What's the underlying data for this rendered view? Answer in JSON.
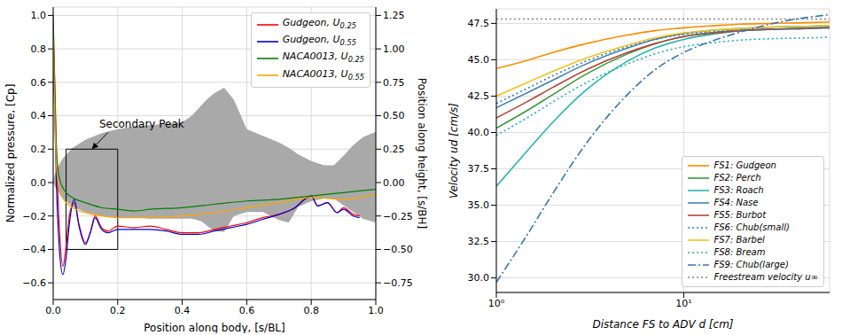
{
  "chart_data": [
    {
      "type": "line",
      "x_label": "Position along body, [s/BL]",
      "y_label": "Normalized pressure, [Cp]",
      "y2_label": "Position along height, [s/BH]",
      "xlim": [
        0,
        1
      ],
      "xticks": [
        {
          "value": 0,
          "label": "0.0"
        },
        0.2,
        0.4,
        0.6,
        0.8,
        {
          "value": 1,
          "label": "1.0"
        }
      ],
      "ylim": [
        -0.7,
        1.05
      ],
      "yticks": [
        {
          "value": -0.6,
          "label": "−0.6"
        },
        {
          "value": -0.4,
          "label": "−0.4"
        },
        {
          "value": -0.2,
          "label": "−0.2"
        },
        {
          "value": 0,
          "label": "0.0"
        },
        0.2,
        0.4,
        0.6,
        0.8,
        {
          "value": 1,
          "label": "1.0"
        }
      ],
      "y2lim": [
        -0.875,
        1.3125
      ],
      "y2ticks": [
        {
          "value": -0.75,
          "label": "−0.75"
        },
        {
          "value": -0.5,
          "label": "−0.50"
        },
        {
          "value": -0.25,
          "label": "−0.25"
        },
        {
          "value": 0,
          "label": "0.00"
        },
        0.25,
        {
          "value": 0.5,
          "label": "0.50"
        },
        0.75,
        {
          "value": 1,
          "label": "1.00"
        },
        1.25
      ],
      "grid": true,
      "legend": "upper right",
      "series": [
        {
          "name": "Gudgeon, U0.25",
          "color": "#ff0000",
          "x": [
            0,
            0.005,
            0.01,
            0.02,
            0.03,
            0.04,
            0.05,
            0.065,
            0.08,
            0.1,
            0.115,
            0.13,
            0.15,
            0.17,
            0.2,
            0.25,
            0.3,
            0.35,
            0.4,
            0.45,
            0.5,
            0.55,
            0.6,
            0.65,
            0.7,
            0.75,
            0.78,
            0.8,
            0.82,
            0.85,
            0.88,
            0.9,
            0.93,
            0.95
          ],
          "values": [
            0.95,
            0.6,
            0.2,
            -0.3,
            -0.5,
            -0.38,
            -0.2,
            -0.12,
            -0.25,
            -0.36,
            -0.3,
            -0.2,
            -0.27,
            -0.29,
            -0.26,
            -0.27,
            -0.26,
            -0.28,
            -0.3,
            -0.3,
            -0.28,
            -0.26,
            -0.24,
            -0.21,
            -0.19,
            -0.15,
            -0.1,
            -0.08,
            -0.14,
            -0.12,
            -0.18,
            -0.15,
            -0.19,
            -0.2
          ]
        },
        {
          "name": "Gudgeon, U0.55",
          "color": "#0000cc",
          "x": [
            0,
            0.005,
            0.01,
            0.02,
            0.03,
            0.04,
            0.05,
            0.065,
            0.08,
            0.1,
            0.115,
            0.13,
            0.15,
            0.17,
            0.2,
            0.25,
            0.3,
            0.35,
            0.4,
            0.45,
            0.5,
            0.55,
            0.6,
            0.65,
            0.7,
            0.75,
            0.78,
            0.8,
            0.82,
            0.85,
            0.88,
            0.9,
            0.93,
            0.95
          ],
          "values": [
            0.7,
            0.4,
            0,
            -0.42,
            -0.55,
            -0.45,
            -0.25,
            -0.1,
            -0.26,
            -0.37,
            -0.3,
            -0.21,
            -0.28,
            -0.3,
            -0.28,
            -0.28,
            -0.28,
            -0.29,
            -0.31,
            -0.31,
            -0.29,
            -0.27,
            -0.25,
            -0.22,
            -0.19,
            -0.15,
            -0.1,
            -0.08,
            -0.14,
            -0.12,
            -0.18,
            -0.16,
            -0.2,
            -0.21
          ]
        },
        {
          "name": "NACA0013, U0.25",
          "color": "#008000",
          "x": [
            0,
            0.005,
            0.01,
            0.02,
            0.04,
            0.07,
            0.1,
            0.15,
            0.2,
            0.25,
            0.3,
            0.4,
            0.5,
            0.6,
            0.7,
            0.8,
            0.9,
            1
          ],
          "values": [
            1,
            0.55,
            0.2,
            0.02,
            -0.06,
            -0.1,
            -0.12,
            -0.15,
            -0.16,
            -0.17,
            -0.16,
            -0.15,
            -0.13,
            -0.11,
            -0.1,
            -0.08,
            -0.06,
            -0.04
          ]
        },
        {
          "name": "NACA0013, U0.55",
          "color": "#ffa500",
          "x": [
            0,
            0.005,
            0.01,
            0.02,
            0.04,
            0.07,
            0.1,
            0.15,
            0.2,
            0.25,
            0.3,
            0.4,
            0.5,
            0.6,
            0.7,
            0.8,
            0.9,
            1
          ],
          "values": [
            0.85,
            0.4,
            0.1,
            -0.05,
            -0.12,
            -0.16,
            -0.18,
            -0.2,
            -0.21,
            -0.21,
            -0.21,
            -0.2,
            -0.18,
            -0.15,
            -0.12,
            -0.09,
            -0.1,
            -0.07
          ]
        }
      ],
      "silhouette": {
        "axis": "y2",
        "color": "#a9a9a9",
        "x": [
          0,
          0.01,
          0.03,
          0.06,
          0.1,
          0.15,
          0.2,
          0.25,
          0.3,
          0.35,
          0.4,
          0.43,
          0.46,
          0.48,
          0.5,
          0.53,
          0.56,
          0.6,
          0.65,
          0.7,
          0.73,
          0.76,
          0.8,
          0.84,
          0.87,
          0.9,
          0.93,
          0.96,
          1
        ],
        "upper": [
          0.02,
          0.1,
          0.18,
          0.26,
          0.32,
          0.37,
          0.4,
          0.42,
          0.43,
          0.44,
          0.45,
          0.5,
          0.58,
          0.63,
          0.67,
          0.71,
          0.62,
          0.4,
          0.35,
          0.3,
          0.26,
          0.21,
          0.16,
          0.13,
          0.13,
          0.2,
          0.28,
          0.34,
          0.38
        ],
        "lower": [
          0,
          -0.05,
          -0.12,
          -0.18,
          -0.22,
          -0.25,
          -0.26,
          -0.26,
          -0.27,
          -0.27,
          -0.27,
          -0.27,
          -0.29,
          -0.33,
          -0.36,
          -0.37,
          -0.25,
          -0.22,
          -0.22,
          -0.28,
          -0.3,
          -0.18,
          -0.14,
          -0.12,
          -0.12,
          -0.17,
          -0.22,
          -0.27,
          -0.3
        ]
      },
      "box": {
        "x": [
          0.04,
          0.2
        ],
        "y": [
          -0.4,
          0.2
        ]
      },
      "annotations": [
        {
          "text": "Secondary Peak",
          "xy": [
            0.12,
            0.2
          ],
          "xytext": [
            0.17,
            0.3
          ]
        }
      ]
    },
    {
      "type": "line",
      "log": "x",
      "x_label": "Distance FS to ADV d [cm]",
      "y_label": "Velocity ud [cm/s]",
      "xlim": [
        1,
        60
      ],
      "xticks": [
        {
          "value": 1,
          "label": "10⁰"
        },
        {
          "value": 10,
          "label": "10¹"
        }
      ],
      "ylim": [
        29,
        48.5
      ],
      "yticks": [
        {
          "value": 30,
          "label": "30.0"
        },
        32.5,
        {
          "value": 35,
          "label": "35.0"
        },
        37.5,
        {
          "value": 40,
          "label": "40.0"
        },
        42.5,
        {
          "value": 45,
          "label": "45.0"
        },
        47.5
      ],
      "grid": true,
      "legend": "lower right",
      "x": [
        1,
        1.5,
        2,
        3,
        5,
        7,
        10,
        15,
        20,
        30,
        45,
        60
      ],
      "series": [
        {
          "name": "FS1: Gudgeon",
          "color": "#ff8c00",
          "line_style": "solid",
          "values": [
            44.4,
            45.0,
            45.5,
            46.1,
            46.7,
            47.0,
            47.2,
            47.35,
            47.45,
            47.5,
            47.55,
            47.6
          ]
        },
        {
          "name": "FS2: Perch",
          "color": "#3a9a3a",
          "line_style": "solid",
          "values": [
            40.3,
            41.6,
            42.6,
            44.0,
            45.4,
            46.1,
            46.6,
            46.9,
            47.0,
            47.1,
            47.15,
            47.2
          ]
        },
        {
          "name": "FS3: Roach",
          "color": "#26b5b0",
          "line_style": "solid",
          "values": [
            36.3,
            38.9,
            40.7,
            42.9,
            44.9,
            45.8,
            46.4,
            46.8,
            47.0,
            47.1,
            47.2,
            47.25
          ]
        },
        {
          "name": "FS4: Nase",
          "color": "#4682b4",
          "line_style": "solid",
          "values": [
            41.7,
            42.8,
            43.6,
            44.7,
            45.8,
            46.4,
            46.8,
            47.05,
            47.15,
            47.25,
            47.3,
            47.35
          ]
        },
        {
          "name": "FS5: Burbot",
          "color": "#b5443a",
          "line_style": "solid",
          "values": [
            41.0,
            42.2,
            43.1,
            44.3,
            45.5,
            46.1,
            46.6,
            46.85,
            47.0,
            47.1,
            47.15,
            47.2
          ]
        },
        {
          "name": "FS6: Chub(small)",
          "color": "#2f7bbf",
          "line_style": "dotted",
          "values": [
            42.0,
            43.1,
            43.9,
            44.9,
            45.9,
            46.4,
            46.75,
            46.95,
            47.05,
            47.1,
            47.15,
            47.2
          ]
        },
        {
          "name": "FS7: Barbel",
          "color": "#f0c419",
          "line_style": "solid",
          "values": [
            42.5,
            43.5,
            44.2,
            45.1,
            46.0,
            46.5,
            46.85,
            47.05,
            47.15,
            47.25,
            47.3,
            47.35
          ]
        },
        {
          "name": "FS8: Bream",
          "color": "#20b2aa",
          "line_style": "dotted",
          "values": [
            39.8,
            41.1,
            42.1,
            43.4,
            44.7,
            45.4,
            45.9,
            46.2,
            46.35,
            46.45,
            46.5,
            46.55
          ]
        },
        {
          "name": "FS9: Chub(large)",
          "color": "#3a75b0",
          "line_style": "dashdot",
          "values": [
            29.7,
            33.2,
            35.8,
            39.2,
            42.6,
            44.3,
            45.5,
            46.4,
            46.9,
            47.5,
            47.9,
            48.1
          ]
        },
        {
          "name": "Freestream velocity u∞",
          "color": "#888888",
          "line_style": "dotted",
          "values": [
            47.8,
            47.8,
            47.8,
            47.8,
            47.8,
            47.8,
            47.8,
            47.8,
            47.8,
            47.8,
            47.8,
            47.8
          ]
        }
      ]
    }
  ]
}
